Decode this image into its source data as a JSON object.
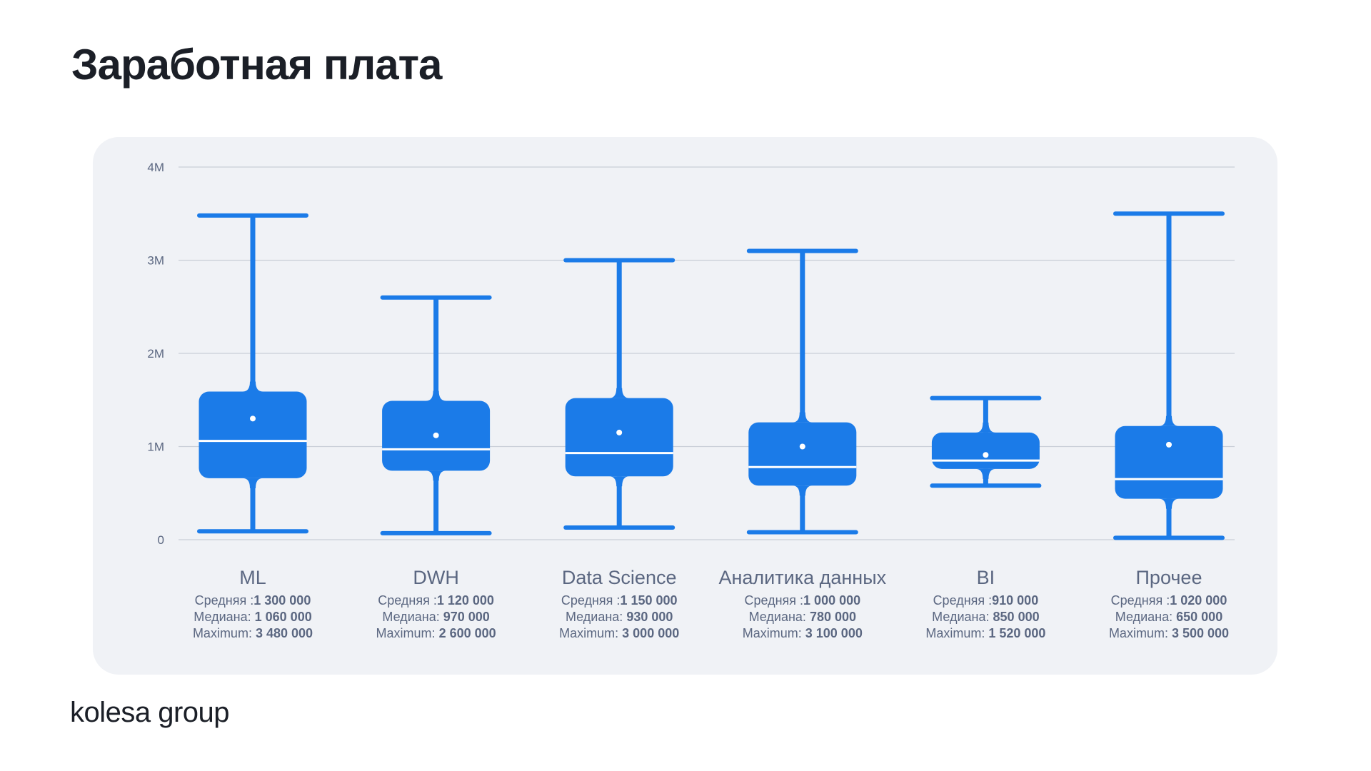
{
  "page": {
    "title": "Заработная плата",
    "logo_text": "kolesa group"
  },
  "colors": {
    "box": "#1b7be8",
    "median": "#ffffff",
    "grid": "#c9ced8",
    "panel": "#f0f2f6",
    "text": "#5b6781"
  },
  "stat_labels": {
    "mean": "Средняя :",
    "median": "Медиана:",
    "max": "Maximum:"
  },
  "chart_data": {
    "type": "boxplot",
    "title": "",
    "ylim": [
      0,
      4000000
    ],
    "yticks": [
      0,
      1000000,
      2000000,
      3000000,
      4000000
    ],
    "ytick_labels": [
      "0",
      "1M",
      "2M",
      "3M",
      "4M"
    ],
    "grid": true,
    "categories": [
      "ML",
      "DWH",
      "Data Science",
      "Аналитика данных",
      "BI",
      "Прочее"
    ],
    "series": [
      {
        "category": "ML",
        "min": 90000,
        "q1": 660000,
        "median": 1060000,
        "q3": 1590000,
        "max": 3480000,
        "mean": 1300000,
        "mean_label": "1 300 000",
        "median_label": "1 060 000",
        "max_label": "3 480 000"
      },
      {
        "category": "DWH",
        "min": 70000,
        "q1": 740000,
        "median": 970000,
        "q3": 1490000,
        "max": 2600000,
        "mean": 1120000,
        "mean_label": "1 120 000",
        "median_label": "970 000",
        "max_label": "2 600 000"
      },
      {
        "category": "Data Science",
        "min": 130000,
        "q1": 680000,
        "median": 930000,
        "q3": 1520000,
        "max": 3000000,
        "mean": 1150000,
        "mean_label": "1 150 000",
        "median_label": "930 000",
        "max_label": "3 000 000"
      },
      {
        "category": "Аналитика данных",
        "min": 80000,
        "q1": 580000,
        "median": 780000,
        "q3": 1260000,
        "max": 3100000,
        "mean": 1000000,
        "mean_label": "1 000 000",
        "median_label": "780 000",
        "max_label": "3 100 000"
      },
      {
        "category": "BI",
        "min": 580000,
        "q1": 760000,
        "median": 850000,
        "q3": 1150000,
        "max": 1520000,
        "mean": 910000,
        "mean_label": "910 000",
        "median_label": "850 000",
        "max_label": "1 520 000"
      },
      {
        "category": "Прочее",
        "min": 20000,
        "q1": 440000,
        "median": 650000,
        "q3": 1220000,
        "max": 3500000,
        "mean": 1020000,
        "mean_label": "1 020 000",
        "median_label": "650 000",
        "max_label": "3 500 000"
      }
    ]
  }
}
